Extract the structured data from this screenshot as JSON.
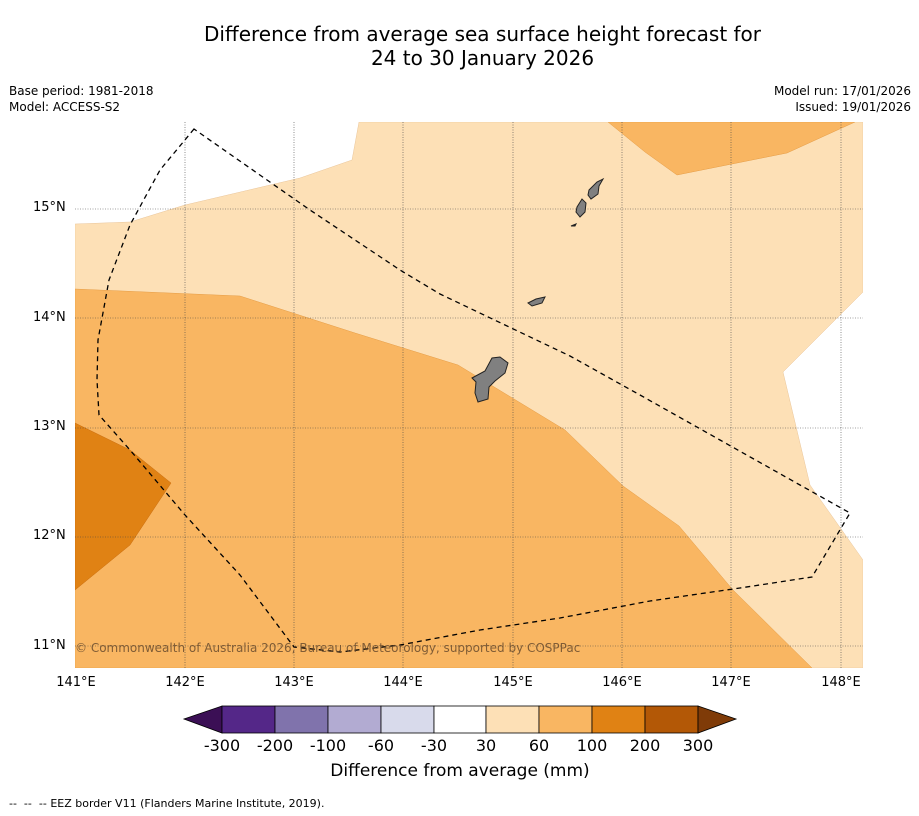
{
  "title": {
    "line1": "Difference from average sea surface height forecast for",
    "line2": "24 to 30 January 2026"
  },
  "meta": {
    "base_period": "Base period: 1981-2018",
    "model": "Model: ACCESS-S2",
    "model_run": "Model run: 17/01/2026",
    "issued": "Issued: 19/01/2026"
  },
  "map": {
    "lat_labels": [
      "15°N",
      "14°N",
      "13°N",
      "12°N",
      "11°N"
    ],
    "lon_labels": [
      "141°E",
      "142°E",
      "143°E",
      "144°E",
      "145°E",
      "146°E",
      "147°E",
      "148°E"
    ],
    "copyright": "© Commonwealth of Australia 2026, Bureau of Meteorology, supported by COSPPac",
    "colors": {
      "land": "#808080",
      "band_30_60": "#fde0b6",
      "band_60_100": "#f9b662",
      "band_100_200": "#e08214",
      "band_200_300": "#b35806"
    },
    "features": [
      "guam",
      "rota",
      "aguijan",
      "tinian",
      "saipan",
      "eez-border"
    ]
  },
  "colorbar": {
    "ticks": [
      "-300",
      "-200",
      "-100",
      "-60",
      "-30",
      "30",
      "60",
      "100",
      "200",
      "300"
    ],
    "colors": [
      "#3b0f55",
      "#542788",
      "#8073ac",
      "#b2abd2",
      "#d8daeb",
      "#ffffff",
      "#fde0b6",
      "#f9b662",
      "#e08214",
      "#b35806",
      "#7f3b08"
    ],
    "label": "Difference from average (mm)"
  },
  "legend": {
    "eez_symbol": "--  --  --",
    "eez_text": "EEZ border V11 (Flanders Marine Institute, 2019)."
  }
}
